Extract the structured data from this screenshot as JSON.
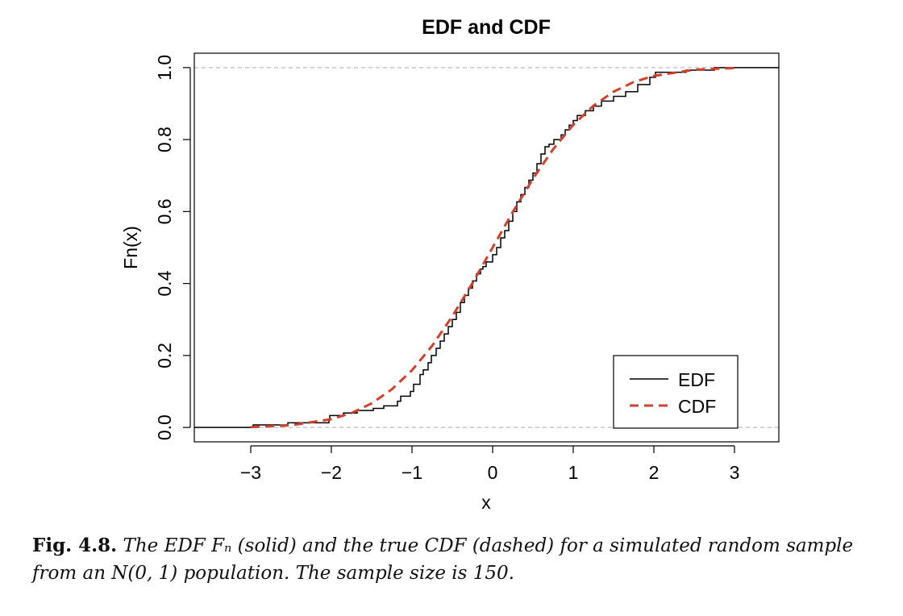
{
  "chart_data": {
    "type": "line",
    "title": "EDF and CDF",
    "xlabel": "x",
    "ylabel": "Fn(x)",
    "xlim": [
      -3.7,
      3.55
    ],
    "ylim": [
      -0.04,
      1.04
    ],
    "x_ticks": [
      -3,
      -2,
      -1,
      0,
      1,
      2,
      3
    ],
    "x_tick_labels": [
      "−3",
      "−2",
      "−1",
      "0",
      "1",
      "2",
      "3"
    ],
    "y_ticks": [
      0.0,
      0.2,
      0.4,
      0.6,
      0.8,
      1.0
    ],
    "y_tick_labels": [
      "0.0",
      "0.2",
      "0.4",
      "0.6",
      "0.8",
      "1.0"
    ],
    "reference_lines_y": [
      0,
      1
    ],
    "sample_size": 150,
    "legend": {
      "position": "bottom-right",
      "entries": [
        "EDF",
        "CDF"
      ]
    },
    "series": [
      {
        "name": "EDF",
        "style": "step-solid",
        "color": "#000000",
        "x": [
          -2.97,
          -2.54,
          -2.03,
          -2.02,
          -1.85,
          -1.68,
          -1.48,
          -1.35,
          -1.18,
          -1.14,
          -1.02,
          -0.98,
          -0.9,
          -0.86,
          -0.8,
          -0.76,
          -0.7,
          -0.65,
          -0.6,
          -0.55,
          -0.5,
          -0.45,
          -0.4,
          -0.35,
          -0.3,
          -0.25,
          -0.2,
          -0.15,
          -0.12,
          -0.08,
          0.0,
          0.05,
          0.1,
          0.15,
          0.2,
          0.25,
          0.3,
          0.35,
          0.4,
          0.45,
          0.5,
          0.55,
          0.6,
          0.65,
          0.7,
          0.76,
          0.85,
          0.9,
          0.95,
          1.0,
          1.05,
          1.15,
          1.25,
          1.35,
          1.5,
          1.65,
          1.8,
          1.95,
          2.02,
          2.4,
          2.75
        ],
        "y": [
          0.007,
          0.013,
          0.02,
          0.033,
          0.04,
          0.047,
          0.053,
          0.06,
          0.073,
          0.087,
          0.1,
          0.12,
          0.147,
          0.16,
          0.18,
          0.2,
          0.22,
          0.24,
          0.26,
          0.28,
          0.3,
          0.32,
          0.347,
          0.367,
          0.387,
          0.407,
          0.427,
          0.44,
          0.447,
          0.46,
          0.48,
          0.5,
          0.527,
          0.547,
          0.573,
          0.6,
          0.627,
          0.647,
          0.667,
          0.687,
          0.707,
          0.733,
          0.76,
          0.78,
          0.787,
          0.8,
          0.813,
          0.827,
          0.84,
          0.853,
          0.867,
          0.88,
          0.893,
          0.907,
          0.92,
          0.933,
          0.953,
          0.973,
          0.987,
          0.993,
          1.0
        ]
      },
      {
        "name": "CDF",
        "style": "dashed",
        "color": "#d0402b",
        "x": [
          -3.0,
          -2.5,
          -2.0,
          -1.75,
          -1.5,
          -1.25,
          -1.0,
          -0.75,
          -0.5,
          -0.25,
          0.0,
          0.25,
          0.5,
          0.75,
          1.0,
          1.25,
          1.5,
          1.75,
          2.0,
          2.5,
          3.0
        ],
        "y": [
          0.001,
          0.006,
          0.023,
          0.04,
          0.067,
          0.106,
          0.159,
          0.227,
          0.309,
          0.401,
          0.5,
          0.599,
          0.691,
          0.773,
          0.841,
          0.894,
          0.933,
          0.96,
          0.977,
          0.994,
          0.999
        ]
      }
    ]
  },
  "caption": {
    "label": "Fig. 4.8.",
    "text": "The EDF Fₙ (solid) and the true CDF (dashed) for a simulated random sample from an N(0, 1) population. The sample size is 150."
  }
}
